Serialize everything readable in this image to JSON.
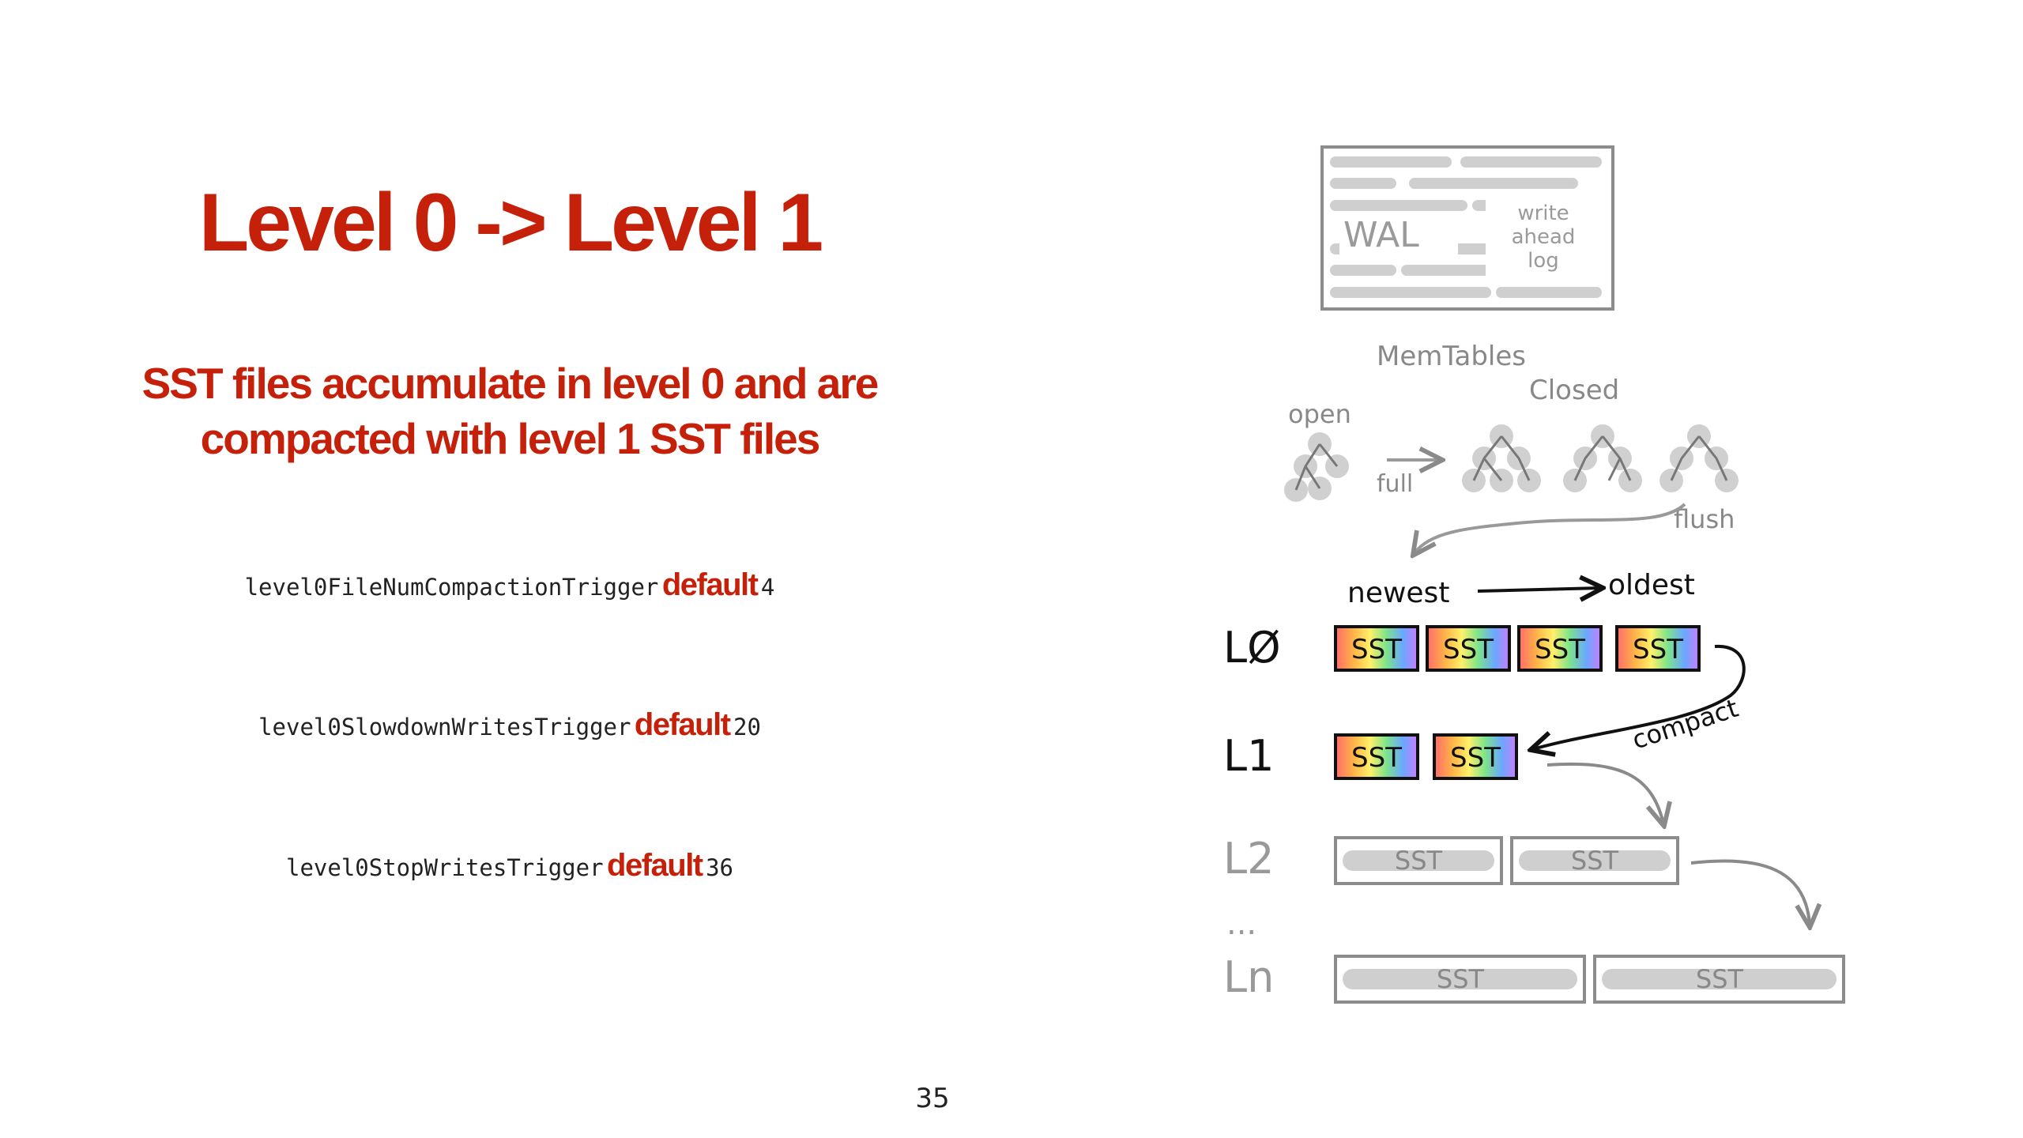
{
  "slide": {
    "title": "Level 0 -> Level 1",
    "subtitle_line1": "SST files accumulate in level 0 and are",
    "subtitle_line2": "compacted with level 1 SST files",
    "page_number": "35"
  },
  "params": [
    {
      "name": "level0FileNumCompactionTrigger",
      "keyword": "default",
      "value": "4"
    },
    {
      "name": "level0SlowdownWritesTrigger",
      "keyword": "default",
      "value": "20"
    },
    {
      "name": "level0StopWritesTrigger",
      "keyword": "default",
      "value": "36"
    }
  ],
  "diagram": {
    "wal": {
      "label": "WAL",
      "note_line1": "write",
      "note_line2": "ahead",
      "note_line3": "log"
    },
    "memtables": {
      "title": "MemTables",
      "open_label": "open",
      "closed_label": "Closed",
      "full_label": "full",
      "flush_label": "flush"
    },
    "order": {
      "newest_label": "newest",
      "oldest_label": "oldest"
    },
    "compact_label": "compact",
    "sst_label": "SST",
    "levels": {
      "l0": "LØ",
      "l1": "L1",
      "l2": "L2",
      "ellipsis": "...",
      "ln": "Ln"
    }
  },
  "colors": {
    "accent": "#c5200a",
    "text": "#222222",
    "sketch_gray": "#a8a8a8",
    "rainbow": [
      "#ff6b6b",
      "#ffb347",
      "#fff06a",
      "#7de38b",
      "#6aa8ff",
      "#c77dff"
    ]
  }
}
